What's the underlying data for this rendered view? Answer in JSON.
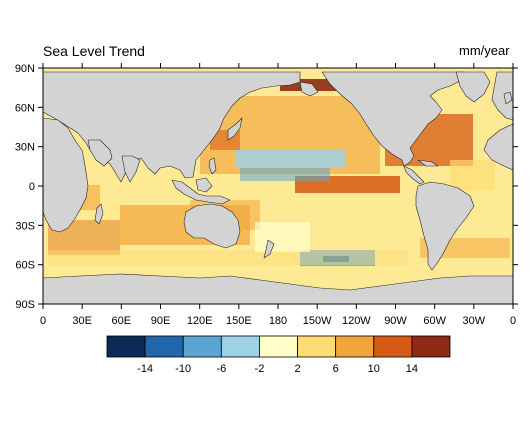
{
  "title": "Sea Level Trend",
  "units": "mm/year",
  "map": {
    "projection": "equidistant cylindrical",
    "lon_range": [
      0,
      360
    ],
    "lat_range": [
      -90,
      90
    ],
    "ocean_field": "sea level trend",
    "land_color": "#d3d3d3",
    "coastline_color": "#222222"
  },
  "axes": {
    "x_ticks": [
      "0",
      "30E",
      "60E",
      "90E",
      "120E",
      "150E",
      "180",
      "150W",
      "120W",
      "90W",
      "60W",
      "30W",
      "0"
    ],
    "y_ticks": [
      "90N",
      "60N",
      "30N",
      "0",
      "30S",
      "60S",
      "90S"
    ]
  },
  "colorbar": {
    "colors": [
      "#0b2a55",
      "#1f66ad",
      "#5aa5d3",
      "#9fd1e6",
      "#ffffcc",
      "#fddc74",
      "#f1a53c",
      "#d65a14",
      "#8c2a15"
    ],
    "labels": [
      "-14",
      "-10",
      "-6",
      "-2",
      "2",
      "6",
      "10",
      "14"
    ]
  }
}
